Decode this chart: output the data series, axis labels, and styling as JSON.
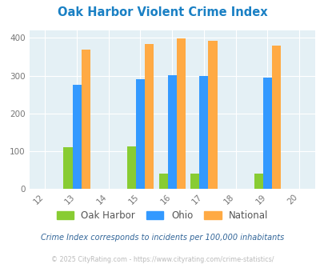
{
  "title": "Oak Harbor Violent Crime Index",
  "title_color": "#1a80c4",
  "years": [
    2013,
    2015,
    2016,
    2017,
    2019
  ],
  "oak_harbor": [
    110,
    112,
    40,
    40,
    40
  ],
  "ohio": [
    276,
    291,
    302,
    300,
    294
  ],
  "national": [
    368,
    384,
    399,
    393,
    379
  ],
  "bar_color_oak": "#88cc33",
  "bar_color_ohio": "#3399ff",
  "bar_color_national": "#ffaa44",
  "xlim": [
    2011.5,
    2020.5
  ],
  "ylim": [
    0,
    420
  ],
  "yticks": [
    0,
    100,
    200,
    300,
    400
  ],
  "xticks": [
    2012,
    2013,
    2014,
    2015,
    2016,
    2017,
    2018,
    2019,
    2020
  ],
  "bg_color": "#e4f0f5",
  "fig_bg": "#ffffff",
  "legend_labels": [
    "Oak Harbor",
    "Ohio",
    "National"
  ],
  "footnote": "Crime Index corresponds to incidents per 100,000 inhabitants",
  "footnote2": "© 2025 CityRating.com - https://www.cityrating.com/crime-statistics/",
  "footnote_color": "#336699",
  "footnote2_color": "#bbbbbb",
  "bar_width": 0.28
}
